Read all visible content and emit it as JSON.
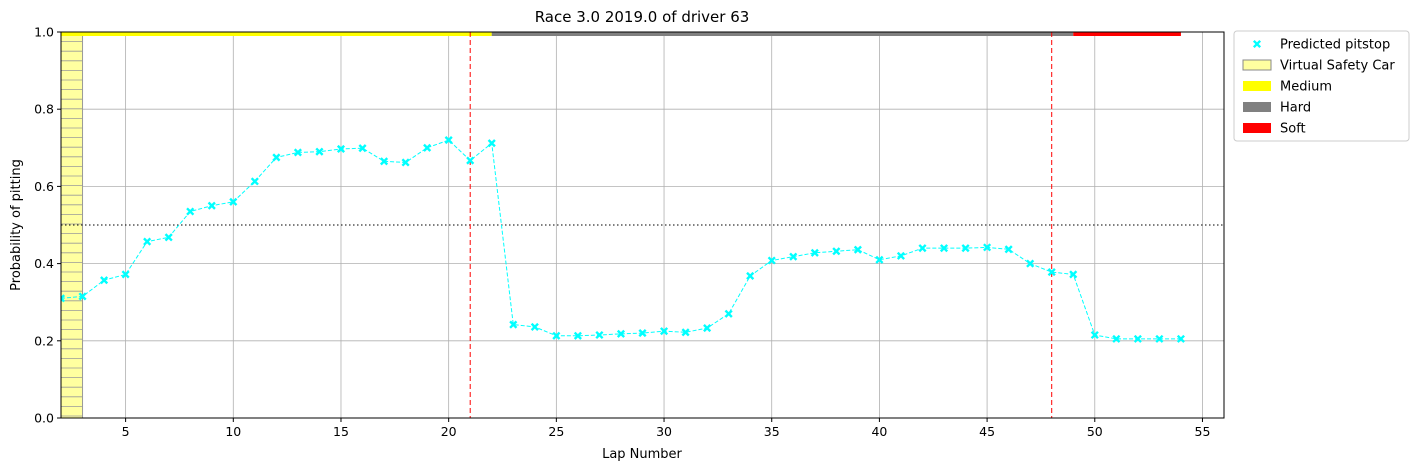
{
  "chart_data": {
    "type": "line",
    "title": "Race 3.0 2019.0 of driver 63",
    "xlabel": "Lap Number",
    "ylabel": "Probability of pitting",
    "xlim": [
      2,
      56
    ],
    "ylim": [
      0,
      1.0
    ],
    "xticks": [
      5,
      10,
      15,
      20,
      25,
      30,
      35,
      40,
      45,
      50,
      55
    ],
    "yticks": [
      0.0,
      0.2,
      0.4,
      0.6,
      0.8,
      1.0
    ],
    "ytick_labels": [
      "0.0",
      "0.2",
      "0.4",
      "0.6",
      "0.8",
      "1.0"
    ],
    "grid": true,
    "legend_position": "outside top-right",
    "threshold": 0.5,
    "series": [
      {
        "name": "Predicted pitstop",
        "color": "#00ffff",
        "x": [
          2,
          3,
          4,
          5,
          6,
          7,
          8,
          9,
          10,
          11,
          12,
          13,
          14,
          15,
          16,
          17,
          18,
          19,
          20,
          21,
          22,
          23,
          24,
          25,
          26,
          27,
          28,
          29,
          30,
          31,
          32,
          33,
          34,
          35,
          36,
          37,
          38,
          39,
          40,
          41,
          42,
          43,
          44,
          45,
          46,
          47,
          48,
          49,
          50,
          51,
          52,
          53,
          54
        ],
        "y": [
          0.31,
          0.315,
          0.357,
          0.372,
          0.457,
          0.468,
          0.535,
          0.55,
          0.56,
          0.613,
          0.675,
          0.688,
          0.69,
          0.697,
          0.699,
          0.665,
          0.662,
          0.7,
          0.72,
          0.667,
          0.712,
          0.242,
          0.236,
          0.213,
          0.213,
          0.215,
          0.218,
          0.22,
          0.225,
          0.222,
          0.233,
          0.27,
          0.368,
          0.408,
          0.418,
          0.428,
          0.432,
          0.436,
          0.41,
          0.42,
          0.44,
          0.44,
          0.44,
          0.442,
          0.437,
          0.4,
          0.378,
          0.372,
          0.215,
          0.205,
          0.205,
          0.205,
          0.205
        ]
      }
    ],
    "pitstops": [
      21,
      48
    ],
    "vsc_periods": [
      [
        2,
        3
      ]
    ],
    "tyre_stints": [
      {
        "compound": "Medium",
        "start": 2,
        "end": 22,
        "color": "#ffff00"
      },
      {
        "compound": "Hard",
        "start": 22,
        "end": 49,
        "color": "#808080"
      },
      {
        "compound": "Soft",
        "start": 49,
        "end": 54,
        "color": "#ff0000"
      }
    ],
    "legend": [
      {
        "label": "Predicted pitstop",
        "kind": "marker",
        "color": "#00ffff"
      },
      {
        "label": "Virtual Safety Car",
        "kind": "hatch",
        "color": "#ffffa0"
      },
      {
        "label": "Medium",
        "kind": "patch",
        "color": "#ffff00"
      },
      {
        "label": "Hard",
        "kind": "patch",
        "color": "#808080"
      },
      {
        "label": "Soft",
        "kind": "patch",
        "color": "#ff0000"
      }
    ]
  }
}
